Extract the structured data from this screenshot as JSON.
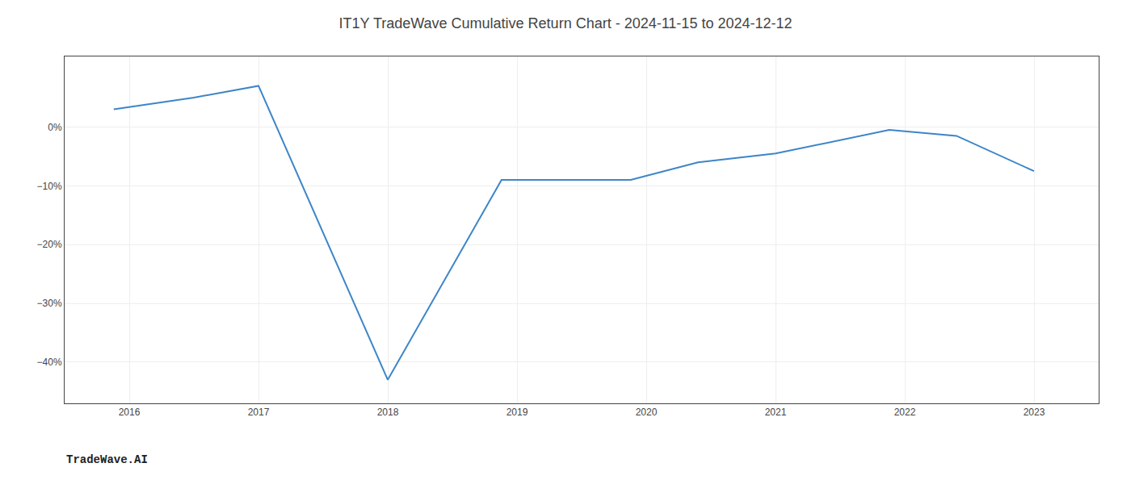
{
  "chart_data": {
    "type": "line",
    "title": "IT1Y TradeWave Cumulative Return Chart - 2024-11-15 to 2024-12-12",
    "x": [
      2015.88,
      2016.5,
      2017.0,
      2018.0,
      2018.88,
      2019.88,
      2020.4,
      2021.0,
      2021.88,
      2022.4,
      2023.0
    ],
    "values": [
      3.0,
      5.0,
      7.0,
      -43.0,
      -9.0,
      -9.0,
      -6.0,
      -4.5,
      -0.5,
      -1.5,
      -7.5
    ],
    "color": "#3d85c8",
    "xlim": [
      2015.5,
      2023.5
    ],
    "ylim": [
      -47,
      12
    ],
    "xticks": [
      2016,
      2017,
      2018,
      2019,
      2020,
      2021,
      2022,
      2023
    ],
    "yticks": [
      {
        "value": 0,
        "label": "0%"
      },
      {
        "value": -10,
        "label": "−10%"
      },
      {
        "value": -20,
        "label": "−20%"
      },
      {
        "value": -30,
        "label": "−30%"
      },
      {
        "value": -40,
        "label": "−40%"
      }
    ],
    "grid": true,
    "annotations": [
      {
        "text": "TradeWave.AI"
      }
    ]
  }
}
